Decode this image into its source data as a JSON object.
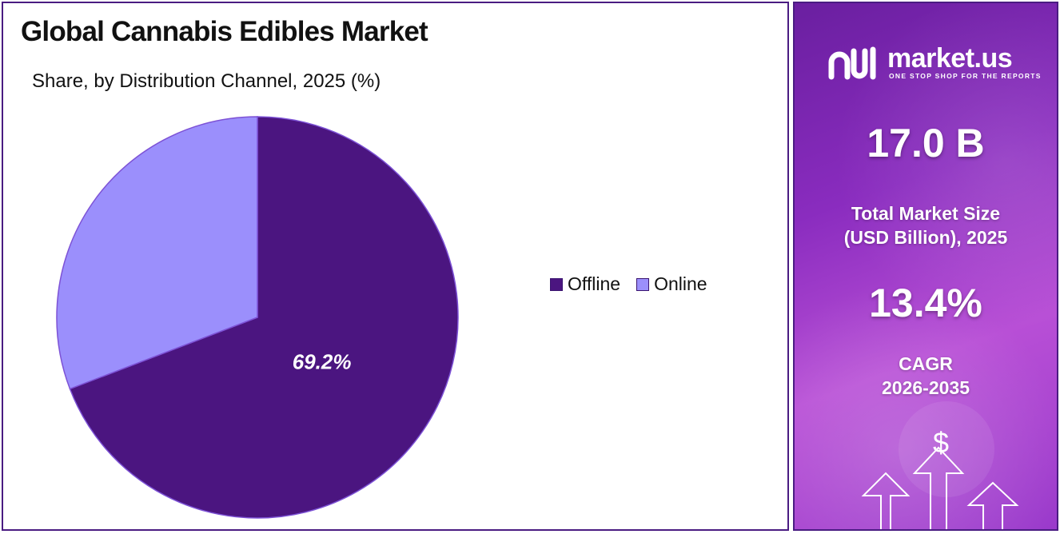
{
  "title": "Global Cannabis Edibles Market",
  "subtitle": "Share, by Distribution Channel, 2025 (%)",
  "chart_data": {
    "type": "pie",
    "title": "Global Cannabis Edibles Market",
    "subtitle": "Share, by Distribution Channel, 2025 (%)",
    "categories": [
      "Offline",
      "Online"
    ],
    "values": [
      69.2,
      30.8
    ],
    "data_labels": [
      "69.2%",
      ""
    ],
    "colors": [
      "#4b1580",
      "#9b8ffc"
    ],
    "start_angle_deg": 0,
    "direction": "clockwise",
    "legend_placement": "right"
  },
  "brand": {
    "name": "market.us",
    "tagline": "ONE STOP SHOP FOR THE REPORTS"
  },
  "stats": {
    "market_size_value": "17.0 B",
    "market_size_label_line1": "Total Market Size",
    "market_size_label_line2": "(USD Billion), 2025",
    "cagr_value": "13.4%",
    "cagr_label_line1": "CAGR",
    "cagr_label_line2": "2026-2035"
  },
  "decor": {
    "currency_symbol": "$"
  },
  "colors": {
    "border": "#4a1c82",
    "panel_gradient_start": "#6a1fa0",
    "panel_gradient_end": "#b84fd6"
  }
}
